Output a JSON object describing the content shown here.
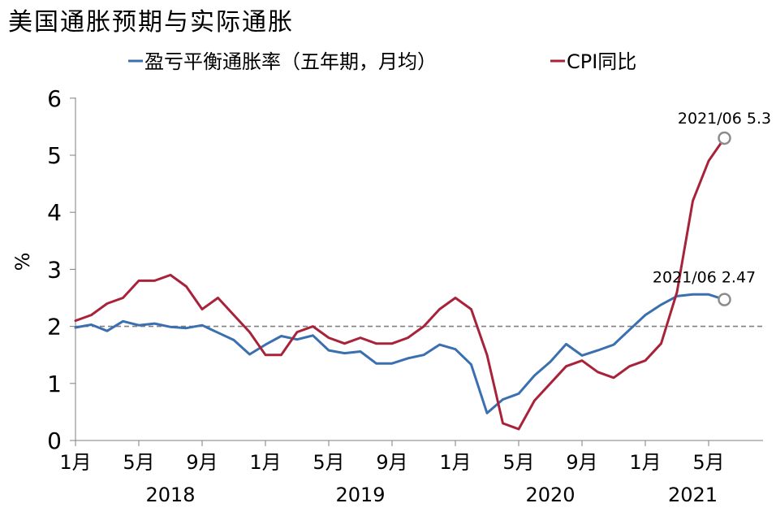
{
  "chart_data": {
    "type": "line",
    "title": "美国通胀预期与实际通胀",
    "ylabel": "%",
    "ylim": [
      0,
      6
    ],
    "yticks": [
      "0",
      "1",
      "2",
      "3",
      "4",
      "5",
      "6"
    ],
    "reference_line": 2,
    "x": [
      "2018-01",
      "2018-02",
      "2018-03",
      "2018-04",
      "2018-05",
      "2018-06",
      "2018-07",
      "2018-08",
      "2018-09",
      "2018-10",
      "2018-11",
      "2018-12",
      "2019-01",
      "2019-02",
      "2019-03",
      "2019-04",
      "2019-05",
      "2019-06",
      "2019-07",
      "2019-08",
      "2019-09",
      "2019-10",
      "2019-11",
      "2019-12",
      "2020-01",
      "2020-02",
      "2020-03",
      "2020-04",
      "2020-05",
      "2020-06",
      "2020-07",
      "2020-08",
      "2020-09",
      "2020-10",
      "2020-11",
      "2020-12",
      "2021-01",
      "2021-02",
      "2021-03",
      "2021-04",
      "2021-05",
      "2021-06"
    ],
    "x_tick_labels": [
      {
        "x": "2018-01",
        "label": "1月"
      },
      {
        "x": "2018-05",
        "label": "5月"
      },
      {
        "x": "2018-09",
        "label": "9月"
      },
      {
        "x": "2019-01",
        "label": "1月"
      },
      {
        "x": "2019-05",
        "label": "5月"
      },
      {
        "x": "2019-09",
        "label": "9月"
      },
      {
        "x": "2020-01",
        "label": "1月"
      },
      {
        "x": "2020-05",
        "label": "5月"
      },
      {
        "x": "2020-09",
        "label": "9月"
      },
      {
        "x": "2021-01",
        "label": "1月"
      },
      {
        "x": "2021-05",
        "label": "5月"
      }
    ],
    "year_labels": [
      {
        "x": "2018-07",
        "label": "2018"
      },
      {
        "x": "2019-07",
        "label": "2019"
      },
      {
        "x": "2020-07",
        "label": "2020"
      },
      {
        "x": "2021-04",
        "label": "2021"
      }
    ],
    "legend_position": "top-center",
    "series": [
      {
        "name": "盈亏平衡通胀率（五年期，月均）",
        "color": "#3a6fb0",
        "values": [
          1.98,
          2.03,
          1.92,
          2.09,
          2.02,
          2.05,
          1.99,
          1.97,
          2.02,
          1.89,
          1.76,
          1.51,
          1.68,
          1.83,
          1.77,
          1.84,
          1.58,
          1.53,
          1.56,
          1.35,
          1.35,
          1.44,
          1.5,
          1.68,
          1.6,
          1.33,
          0.48,
          0.72,
          0.82,
          1.14,
          1.38,
          1.69,
          1.49,
          1.58,
          1.68,
          1.94,
          2.2,
          2.38,
          2.53,
          2.56,
          2.56,
          2.47
        ]
      },
      {
        "name": "CPI同比",
        "color": "#a8233a",
        "values": [
          2.1,
          2.2,
          2.4,
          2.5,
          2.8,
          2.8,
          2.9,
          2.7,
          2.3,
          2.5,
          2.2,
          1.9,
          1.5,
          1.5,
          1.9,
          2.0,
          1.8,
          1.7,
          1.8,
          1.7,
          1.7,
          1.8,
          2.0,
          2.3,
          2.5,
          2.3,
          1.5,
          0.3,
          0.2,
          0.7,
          1.0,
          1.3,
          1.4,
          1.2,
          1.1,
          1.3,
          1.4,
          1.7,
          2.6,
          4.2,
          4.9,
          5.3
        ]
      }
    ],
    "annotations": [
      {
        "x": "2021-06",
        "series": 1,
        "value": 5.3,
        "label": "2021/06 5.3"
      },
      {
        "x": "2021-06",
        "series": 0,
        "value": 2.47,
        "label": "2021/06 2.47"
      }
    ]
  }
}
